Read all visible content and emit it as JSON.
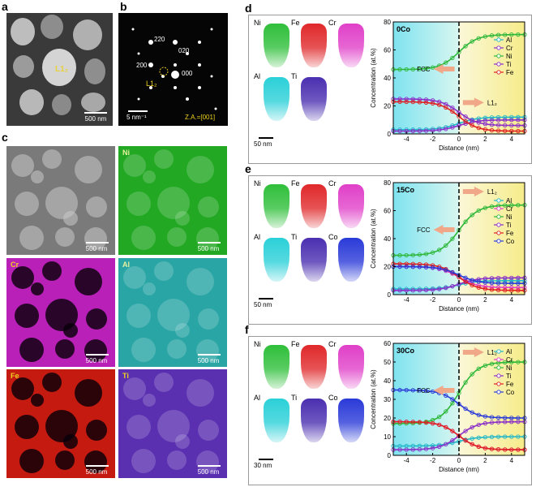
{
  "panels": {
    "a": {
      "label": "a",
      "phase_label": "L1₂",
      "scale_bar": "500 nm"
    },
    "b": {
      "label": "b",
      "spots": [
        "220",
        "020",
        "200",
        "000"
      ],
      "phase_label": "L1₂",
      "scale_bar": "5 nm⁻¹",
      "zone_axis": "Z.A.=[001]"
    },
    "c": {
      "label": "c",
      "maps": [
        {
          "element": "",
          "scale_bar": "500 nm",
          "color": "#7a7a7a"
        },
        {
          "element": "Ni",
          "scale_bar": "500 nm",
          "color": "#22a822"
        },
        {
          "element": "Cr",
          "scale_bar": "500 nm",
          "color": "#b820b8"
        },
        {
          "element": "Al",
          "scale_bar": "500 nm",
          "color": "#2aa5a5"
        },
        {
          "element": "Fe",
          "scale_bar": "500 nm",
          "color": "#c41a10"
        },
        {
          "element": "Ti",
          "scale_bar": "500 nm",
          "color": "#5a2fb0"
        }
      ]
    },
    "d": {
      "label": "d",
      "sample": "0Co",
      "tips_top": [
        "Ni",
        "Fe",
        "Cr"
      ],
      "tips_bottom": [
        "Al",
        "Ti"
      ],
      "scale_bar": "50 nm"
    },
    "e": {
      "label": "e",
      "sample": "15Co",
      "tips_top": [
        "Ni",
        "Fe",
        "Cr"
      ],
      "tips_bottom": [
        "Al",
        "Ti",
        "Co"
      ],
      "scale_bar": "50 nm"
    },
    "f": {
      "label": "f",
      "sample": "30Co",
      "tips_top": [
        "Ni",
        "Fe",
        "Cr"
      ],
      "tips_bottom": [
        "Al",
        "Ti",
        "Co"
      ],
      "scale_bar": "30 nm"
    }
  },
  "element_colors": {
    "Ni": "#2fbf3a",
    "Fe": "#e0282a",
    "Cr": "#e040c8",
    "Al": "#2bd0d8",
    "Ti": "#4a2fb0",
    "Co": "#2a3ad8"
  },
  "chart_data": [
    {
      "type": "line",
      "title": "0Co",
      "xlabel": "Distance (nm)",
      "ylabel": "Concentration (at.%)",
      "xlim": [
        -5,
        5
      ],
      "ylim": [
        0,
        80
      ],
      "xticks": [
        -4,
        -2,
        0,
        2,
        4
      ],
      "yticks": [
        0,
        20,
        40,
        60,
        80
      ],
      "annotations": [
        "FCC",
        "L1₂"
      ],
      "legend": [
        "Al",
        "Cr",
        "Ni",
        "Ti",
        "Fe"
      ],
      "series": [
        {
          "name": "Al",
          "left": 3,
          "right": 12,
          "color": "#22b8c8"
        },
        {
          "name": "Cr",
          "left": 25,
          "right": 6,
          "color": "#8a2fc8"
        },
        {
          "name": "Ni",
          "left": 46,
          "right": 71,
          "color": "#2eb83a"
        },
        {
          "name": "Ti",
          "left": 2,
          "right": 10,
          "color": "#8a2fc8"
        },
        {
          "name": "Fe",
          "left": 23,
          "right": 2,
          "color": "#e02020"
        }
      ]
    },
    {
      "type": "line",
      "title": "15Co",
      "xlabel": "Distance (nm)",
      "ylabel": "Concentration (at.%)",
      "xlim": [
        -5,
        5
      ],
      "ylim": [
        0,
        80
      ],
      "xticks": [
        -4,
        -2,
        0,
        2,
        4
      ],
      "yticks": [
        0,
        20,
        40,
        60,
        80
      ],
      "annotations": [
        "FCC",
        "L1₂"
      ],
      "legend": [
        "Al",
        "Cr",
        "Ni",
        "Ti",
        "Fe",
        "Co"
      ],
      "series": [
        {
          "name": "Al",
          "left": 4,
          "right": 10,
          "color": "#22b8c8"
        },
        {
          "name": "Cr",
          "left": 20,
          "right": 5,
          "color": "#e040c8"
        },
        {
          "name": "Ni",
          "left": 28,
          "right": 64,
          "color": "#2eb83a"
        },
        {
          "name": "Ti",
          "left": 3,
          "right": 12,
          "color": "#8a2fc8"
        },
        {
          "name": "Fe",
          "left": 22,
          "right": 3,
          "color": "#e02020"
        },
        {
          "name": "Co",
          "left": 20,
          "right": 8,
          "color": "#2a3ad8"
        }
      ]
    },
    {
      "type": "line",
      "title": "30Co",
      "xlabel": "Distance (nm)",
      "ylabel": "Concentration (at.%)",
      "xlim": [
        -5,
        5
      ],
      "ylim": [
        0,
        60
      ],
      "xticks": [
        -4,
        -2,
        0,
        2,
        4
      ],
      "yticks": [
        0,
        10,
        20,
        30,
        40,
        50,
        60
      ],
      "annotations": [
        "FCC",
        "L1₂"
      ],
      "legend": [
        "Al",
        "Cr",
        "Ni",
        "Ti",
        "Fe",
        "Co"
      ],
      "series": [
        {
          "name": "Al",
          "left": 5,
          "right": 10,
          "color": "#22b8c8"
        },
        {
          "name": "Cr",
          "left": 18,
          "right": 3,
          "color": "#e040c8"
        },
        {
          "name": "Ni",
          "left": 17,
          "right": 50,
          "color": "#2eb83a"
        },
        {
          "name": "Ti",
          "left": 3,
          "right": 18,
          "color": "#8a2fc8"
        },
        {
          "name": "Fe",
          "left": 18,
          "right": 3,
          "color": "#e02020"
        },
        {
          "name": "Co",
          "left": 35,
          "right": 20,
          "color": "#2a3ad8"
        }
      ]
    }
  ]
}
